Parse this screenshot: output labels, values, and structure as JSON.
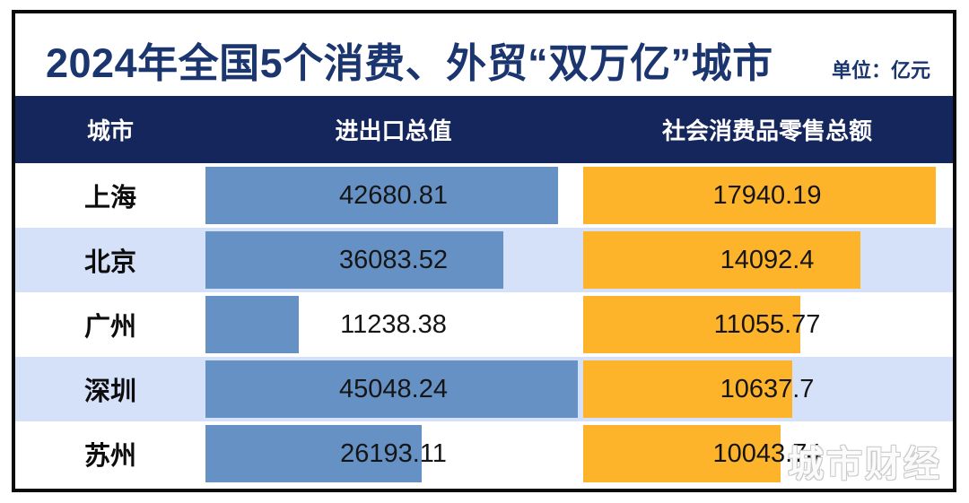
{
  "title": "2024年全国5个消费、外贸“双万亿”城市",
  "unit_label": "单位：亿元",
  "watermark": "城市财经",
  "table": {
    "columns": [
      "城市",
      "进出口总值",
      "社会消费品零售总额"
    ],
    "rows": [
      {
        "city": "上海",
        "import_export": "42680.81",
        "retail": "17940.19"
      },
      {
        "city": "北京",
        "import_export": "36083.52",
        "retail": "14092.4"
      },
      {
        "city": "广州",
        "import_export": "11238.38",
        "retail": "11055.77"
      },
      {
        "city": "深圳",
        "import_export": "45048.24",
        "retail": "10637.7"
      },
      {
        "city": "苏州",
        "import_export": "26193.11",
        "retail": "10043.74"
      }
    ]
  },
  "colors": {
    "title_color": "#1b356f",
    "header_bg": "#15265c",
    "bar_blue": "#6591c5",
    "bar_orange": "#fdb32a",
    "row_alt": "#d5e1f8",
    "border_color": "#0a0a0a"
  },
  "chart_data": {
    "type": "bar",
    "orientation": "horizontal",
    "title": "2024年全国5个消费、外贸“双万亿”城市",
    "unit": "亿元",
    "categories": [
      "上海",
      "北京",
      "广州",
      "深圳",
      "苏州"
    ],
    "series": [
      {
        "name": "进出口总值",
        "values": [
          42680.81,
          36083.52,
          11238.38,
          45048.24,
          26193.11
        ]
      },
      {
        "name": "社会消费品零售总额",
        "values": [
          17940.19,
          14092.4,
          11055.77,
          10637.7,
          10043.74
        ]
      }
    ],
    "axis_max": {
      "进出口总值": 45480,
      "社会消费品零售总额": 18900
    },
    "legend": "none",
    "grid": "off",
    "value_labels": "on"
  }
}
